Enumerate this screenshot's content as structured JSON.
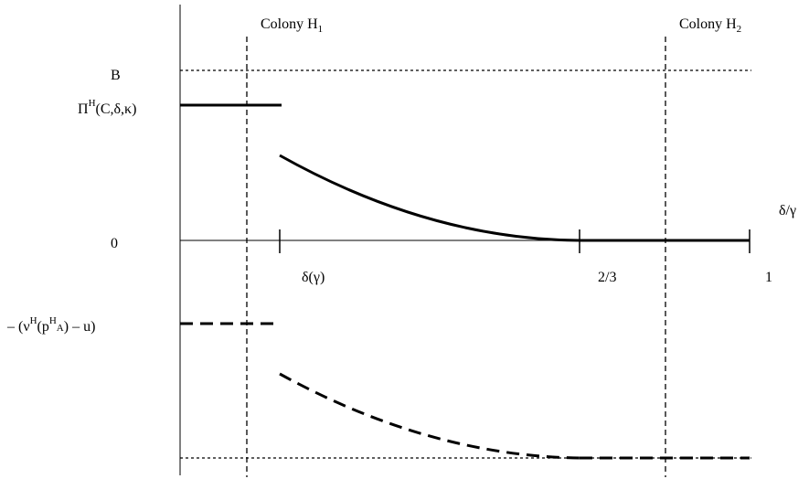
{
  "labels": {
    "colony_h1": "Colony H",
    "colony_h1_sub": "1",
    "colony_h2": "Colony H",
    "colony_h2_sub": "2",
    "b": "B",
    "pi_main": "Π",
    "pi_sup": "H",
    "pi_args": "(C,δ,κ)",
    "zero": "0",
    "axis_var": "δ/γ",
    "delta_gamma": "δ(γ)",
    "two_thirds": "2/3",
    "one": "1",
    "neg_prefix": "– (ν",
    "neg_sup1": "H",
    "neg_mid": "(p",
    "neg_sup2": "H",
    "neg_sub": "A",
    "neg_suffix": ") – u)"
  }
}
